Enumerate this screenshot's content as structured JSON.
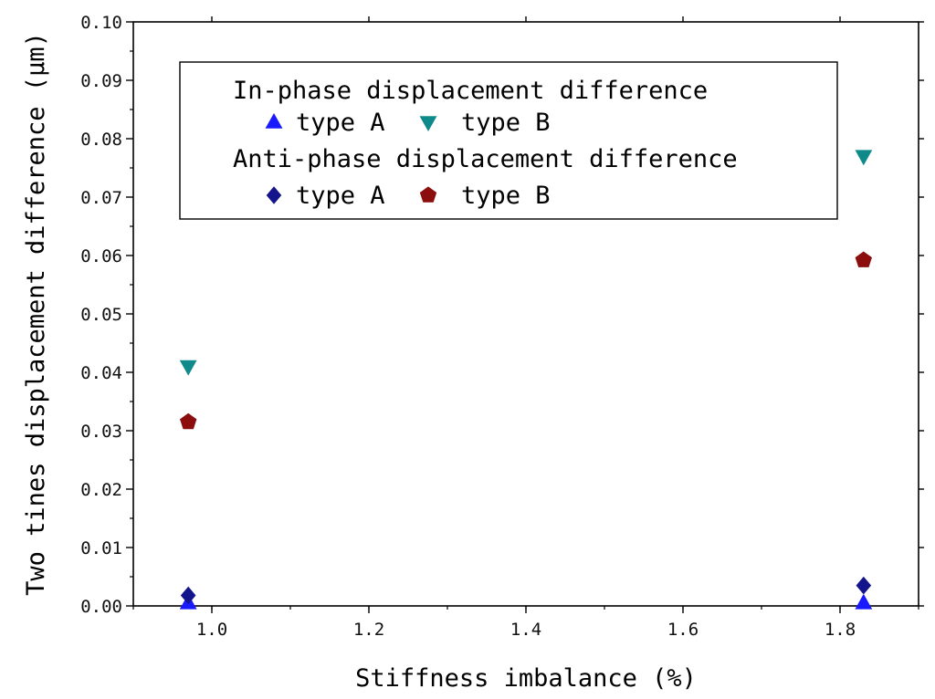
{
  "chart_data": {
    "type": "scatter",
    "xlabel": "Stiffness imbalance (%)",
    "ylabel": "Two tines displacement difference (μm)",
    "xlim": [
      0.9,
      1.9
    ],
    "ylim": [
      0.0,
      0.1
    ],
    "x_ticks": [
      "1.0",
      "1.2",
      "1.4",
      "1.6",
      "1.8"
    ],
    "y_ticks": [
      "0.00",
      "0.01",
      "0.02",
      "0.03",
      "0.04",
      "0.05",
      "0.06",
      "0.07",
      "0.08",
      "0.09",
      "0.10"
    ],
    "grid": false,
    "legend_position": "top",
    "legend": {
      "group1_title": "In-phase displacement difference",
      "group2_title": "Anti-phase displacement difference"
    },
    "series": [
      {
        "name": "type A",
        "group": "In-phase displacement difference",
        "marker": "triangle-up",
        "color": "#1a1aff",
        "x": [
          0.97,
          1.83
        ],
        "y": [
          0.0005,
          0.0005
        ]
      },
      {
        "name": "type B",
        "group": "In-phase displacement difference",
        "marker": "triangle-down",
        "color": "#0f8a8a",
        "x": [
          0.97,
          1.83
        ],
        "y": [
          0.041,
          0.077
        ]
      },
      {
        "name": "type A",
        "group": "Anti-phase displacement difference",
        "marker": "diamond",
        "color": "#14148c",
        "x": [
          0.97,
          1.83
        ],
        "y": [
          0.0018,
          0.0035
        ]
      },
      {
        "name": "type B",
        "group": "Anti-phase displacement difference",
        "marker": "pentagon",
        "color": "#8b0d0d",
        "x": [
          0.97,
          1.83
        ],
        "y": [
          0.0315,
          0.0592
        ]
      }
    ]
  }
}
